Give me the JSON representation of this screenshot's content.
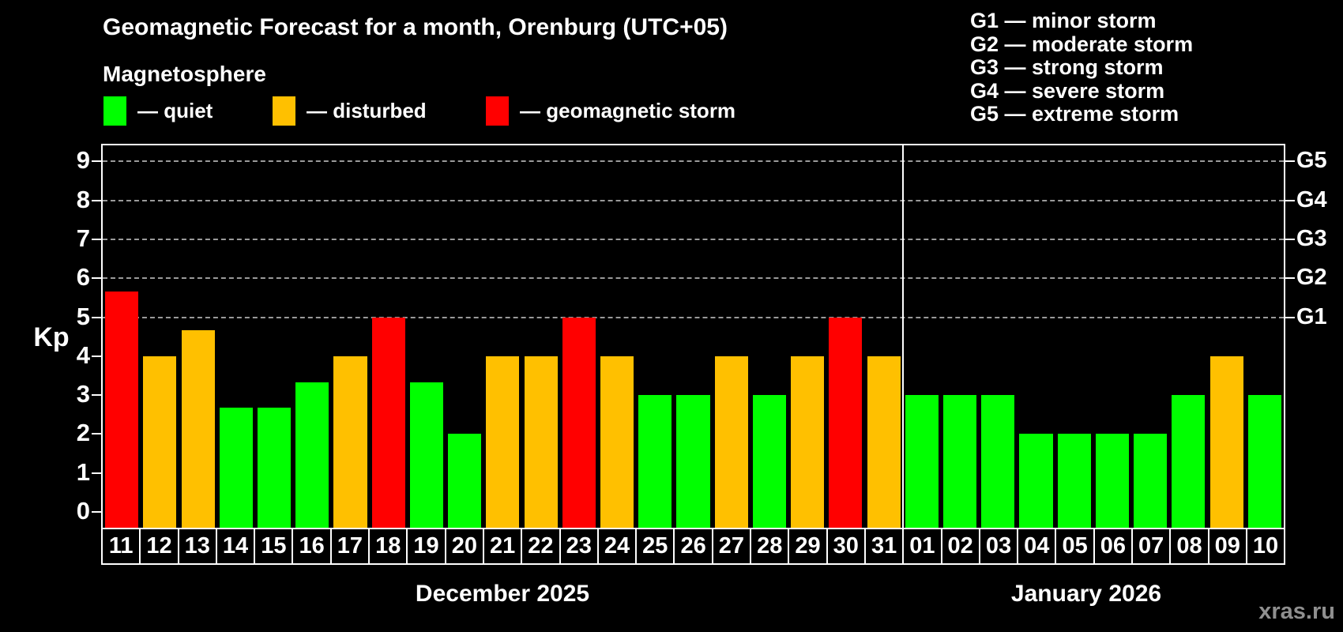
{
  "header": {
    "title": "Geomagnetic Forecast for a month, Orenburg (UTC+05)",
    "subtitle": "Magnetosphere"
  },
  "g_legend": [
    "G1 — minor storm",
    "G2 — moderate storm",
    "G3 — strong storm",
    "G4 — severe storm",
    "G5 — extreme storm"
  ],
  "watermark": "xras.ru",
  "chart_data": {
    "type": "bar",
    "title": "Geomagnetic Forecast for a month, Orenburg (UTC+05)",
    "subtitle": "Magnetosphere",
    "xlabel": "",
    "ylabel": "Kp",
    "ylim": [
      0,
      9.45
    ],
    "yticks": [
      0,
      1,
      2,
      3,
      4,
      5,
      6,
      7,
      8,
      9
    ],
    "gridline_values": [
      5,
      6,
      7,
      8,
      9
    ],
    "grid_style": "horizontal dashed gray lines at Kp 5–9 only",
    "legend_position": "top-left",
    "background_color": "#000000",
    "axis_color": "#ffffff",
    "levels": {
      "quiet": {
        "label": "— quiet",
        "color": "#00ff00"
      },
      "disturbed": {
        "label": "— disturbed",
        "color": "#ffc000"
      },
      "storm": {
        "label": "— geomagnetic storm",
        "color": "#ff0000"
      }
    },
    "right_axis": [
      {
        "kp": 5,
        "label": "G1"
      },
      {
        "kp": 6,
        "label": "G2"
      },
      {
        "kp": 7,
        "label": "G3"
      },
      {
        "kp": 8,
        "label": "G4"
      },
      {
        "kp": 9,
        "label": "G5"
      }
    ],
    "months": [
      {
        "label": "December 2025",
        "days": 21
      },
      {
        "label": "January 2026",
        "days": 10
      }
    ],
    "bars": [
      {
        "day": "11",
        "kp": 5.67,
        "level": "storm"
      },
      {
        "day": "12",
        "kp": 4,
        "level": "disturbed"
      },
      {
        "day": "13",
        "kp": 4.67,
        "level": "disturbed"
      },
      {
        "day": "14",
        "kp": 2.67,
        "level": "quiet"
      },
      {
        "day": "15",
        "kp": 2.67,
        "level": "quiet"
      },
      {
        "day": "16",
        "kp": 3.33,
        "level": "quiet"
      },
      {
        "day": "17",
        "kp": 4,
        "level": "disturbed"
      },
      {
        "day": "18",
        "kp": 5,
        "level": "storm"
      },
      {
        "day": "19",
        "kp": 3.33,
        "level": "quiet"
      },
      {
        "day": "20",
        "kp": 2,
        "level": "quiet"
      },
      {
        "day": "21",
        "kp": 4,
        "level": "disturbed"
      },
      {
        "day": "22",
        "kp": 4,
        "level": "disturbed"
      },
      {
        "day": "23",
        "kp": 5,
        "level": "storm"
      },
      {
        "day": "24",
        "kp": 4,
        "level": "disturbed"
      },
      {
        "day": "25",
        "kp": 3,
        "level": "quiet"
      },
      {
        "day": "26",
        "kp": 3,
        "level": "quiet"
      },
      {
        "day": "27",
        "kp": 4,
        "level": "disturbed"
      },
      {
        "day": "28",
        "kp": 3,
        "level": "quiet"
      },
      {
        "day": "29",
        "kp": 4,
        "level": "disturbed"
      },
      {
        "day": "30",
        "kp": 5,
        "level": "storm"
      },
      {
        "day": "31",
        "kp": 4,
        "level": "disturbed"
      },
      {
        "day": "01",
        "kp": 3,
        "level": "quiet"
      },
      {
        "day": "02",
        "kp": 3,
        "level": "quiet"
      },
      {
        "day": "03",
        "kp": 3,
        "level": "quiet"
      },
      {
        "day": "04",
        "kp": 2,
        "level": "quiet"
      },
      {
        "day": "05",
        "kp": 2,
        "level": "quiet"
      },
      {
        "day": "06",
        "kp": 2,
        "level": "quiet"
      },
      {
        "day": "07",
        "kp": 2,
        "level": "quiet"
      },
      {
        "day": "08",
        "kp": 3,
        "level": "quiet"
      },
      {
        "day": "09",
        "kp": 4,
        "level": "disturbed"
      },
      {
        "day": "10",
        "kp": 3,
        "level": "quiet"
      }
    ]
  }
}
